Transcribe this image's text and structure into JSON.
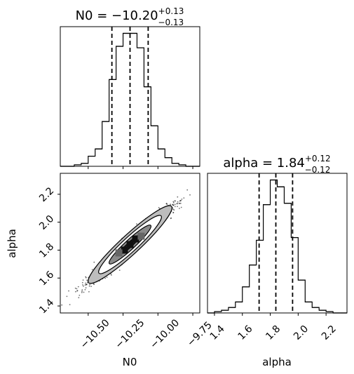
{
  "chart_data": [
    {
      "type": "histogram",
      "param": "N0",
      "title": {
        "prefix": "N0 = −10.20",
        "sup": "+0.13",
        "sub": "−0.13"
      },
      "xlim": [
        -10.7,
        -9.7
      ],
      "bin_edges": [
        -10.7,
        -10.65,
        -10.6,
        -10.55,
        -10.5,
        -10.45,
        -10.4,
        -10.35,
        -10.3,
        -10.25,
        -10.2,
        -10.15,
        -10.1,
        -10.05,
        -10.0,
        -9.95,
        -9.9,
        -9.85,
        -9.8,
        -9.75,
        -9.7
      ],
      "counts": [
        0,
        0,
        1,
        2,
        7,
        12,
        31,
        60,
        83,
        92,
        92,
        82,
        55,
        28,
        12,
        6,
        2,
        1,
        0,
        0
      ],
      "quantiles": [
        -10.33,
        -10.2,
        -10.07
      ],
      "xticks": [
        -10.5,
        -10.25,
        -10.0,
        -9.75
      ],
      "xtick_labels": [],
      "ylabel": ""
    },
    {
      "type": "histogram",
      "param": "alpha",
      "title": {
        "prefix": "alpha = 1.84",
        "sup": "+0.12",
        "sub": "−0.12"
      },
      "xlim": [
        1.35,
        2.35
      ],
      "bin_edges": [
        1.35,
        1.4,
        1.45,
        1.5,
        1.55,
        1.6,
        1.65,
        1.7,
        1.75,
        1.8,
        1.85,
        1.9,
        1.95,
        2.0,
        2.05,
        2.1,
        2.15,
        2.2,
        2.25,
        2.3,
        2.35
      ],
      "counts": [
        0,
        1,
        2,
        4,
        8,
        19,
        35,
        53,
        79,
        97,
        92,
        80,
        55,
        24,
        8,
        4,
        2,
        1,
        0,
        0
      ],
      "quantiles": [
        1.72,
        1.84,
        1.96
      ],
      "xticks": [
        1.4,
        1.6,
        1.8,
        2.0,
        2.2
      ],
      "xtick_labels": [
        "1.4",
        "1.6",
        "1.8",
        "2.0",
        "2.2"
      ],
      "xlabel": "alpha"
    },
    {
      "type": "2d-density",
      "x_param": "N0",
      "y_param": "alpha",
      "xlim": [
        -10.7,
        -9.7
      ],
      "ylim": [
        1.35,
        2.35
      ],
      "xticks": [
        -10.5,
        -10.25,
        -10.0,
        -9.75
      ],
      "xtick_labels": [
        "−10.50",
        "−10.25",
        "−10.00",
        "−9.75"
      ],
      "yticks": [
        1.4,
        1.6,
        1.8,
        2.0,
        2.2
      ],
      "ytick_labels": [
        "1.4",
        "1.6",
        "1.8",
        "2.0",
        "2.2"
      ],
      "xlabel": "N0",
      "ylabel": "alpha",
      "center": [
        -10.2,
        1.84
      ],
      "sigma": [
        0.13,
        0.12
      ],
      "correlation": 0.97,
      "contour_levels_sigma": [
        0.5,
        1.0,
        1.5,
        2.0
      ]
    }
  ]
}
